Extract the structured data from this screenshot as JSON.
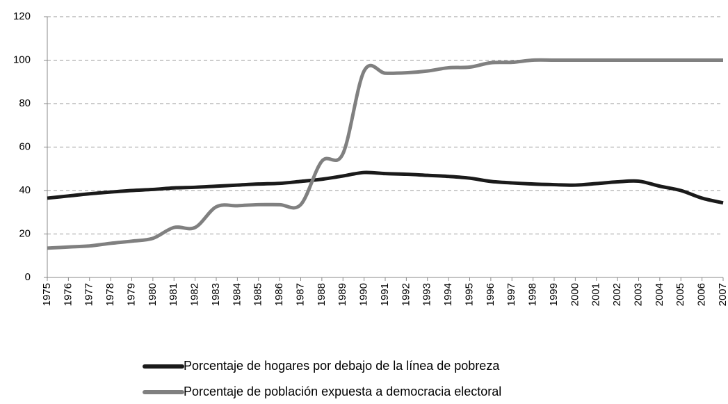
{
  "chart_data": {
    "type": "line",
    "x": [
      1975,
      1976,
      1977,
      1978,
      1979,
      1980,
      1981,
      1982,
      1983,
      1984,
      1985,
      1986,
      1987,
      1988,
      1989,
      1990,
      1991,
      1992,
      1993,
      1994,
      1995,
      1996,
      1997,
      1998,
      1999,
      2000,
      2001,
      2002,
      2003,
      2004,
      2005,
      2006,
      2007
    ],
    "xlim": [
      1975,
      2007
    ],
    "ylim": [
      0,
      120
    ],
    "yticks": [
      0,
      20,
      40,
      60,
      80,
      100,
      120
    ],
    "grid": true,
    "legend": "bottom",
    "series": [
      {
        "name": "Porcentaje de hogares por debajo de la línea de pobreza",
        "color": "#1a1a1a",
        "values": [
          36.5,
          37.5,
          38.5,
          39.3,
          40,
          40.5,
          41.2,
          41.5,
          42,
          42.5,
          43,
          43.3,
          44.2,
          45.2,
          46.7,
          48.3,
          47.8,
          47.5,
          47,
          46.5,
          45.7,
          44.2,
          43.5,
          43,
          42.7,
          42.5,
          43.2,
          44,
          44.3,
          42,
          40,
          36.5,
          34.3
        ]
      },
      {
        "name": "Porcentaje de población expuesta a democracia electoral",
        "color": "#808080",
        "values": [
          13.5,
          14,
          14.5,
          15.7,
          16.7,
          18,
          23,
          23,
          32.5,
          33,
          33.5,
          33.5,
          33.5,
          53.5,
          57,
          95,
          94,
          94.2,
          95,
          96.5,
          96.8,
          98.8,
          99,
          100,
          100,
          100,
          100,
          100,
          100,
          100,
          100,
          100,
          100
        ]
      }
    ]
  }
}
